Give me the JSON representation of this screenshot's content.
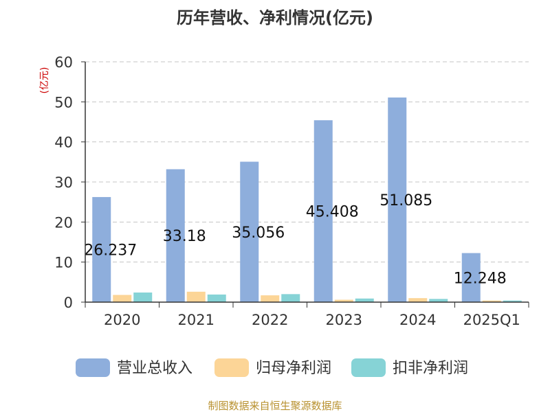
{
  "chart_data": {
    "type": "bar",
    "title": "历年营收、净利情况(亿元)",
    "ylabel": "(亿元)",
    "xlabel": "",
    "categories": [
      "2020",
      "2021",
      "2022",
      "2023",
      "2024",
      "2025Q1"
    ],
    "ylim": [
      0,
      60
    ],
    "yticks": [
      0,
      10,
      20,
      30,
      40,
      50,
      60
    ],
    "grid": true,
    "legend_position": "bottom",
    "series": [
      {
        "name": "营业总收入",
        "color": "#8eaedc",
        "values": [
          26.237,
          33.18,
          35.056,
          45.408,
          51.085,
          12.248
        ]
      },
      {
        "name": "归母净利润",
        "color": "#fcd597",
        "values": [
          1.8,
          2.6,
          1.7,
          0.6,
          1.0,
          0.4
        ]
      },
      {
        "name": "扣非净利润",
        "color": "#86d3d6",
        "values": [
          2.4,
          1.9,
          2.0,
          0.9,
          0.8,
          0.4
        ]
      }
    ],
    "data_labels": [
      "26.237",
      "33.18",
      "35.056",
      "45.408",
      "51.085",
      "12.248"
    ]
  },
  "footer": {
    "source": "制图数据来自恒生聚源数据库"
  }
}
